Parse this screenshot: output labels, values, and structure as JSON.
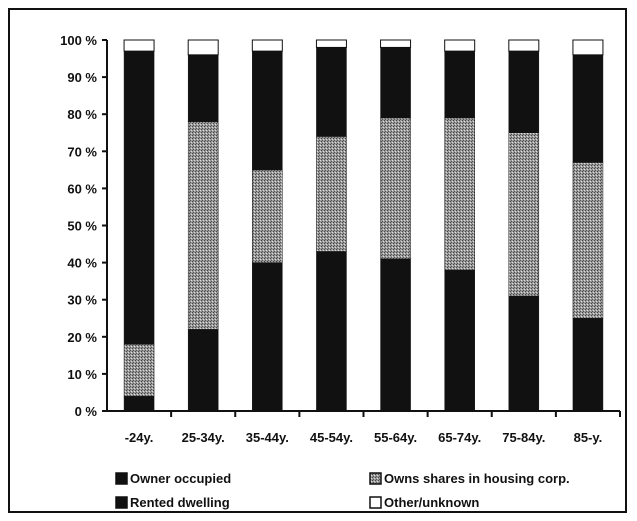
{
  "chart_data": {
    "type": "bar",
    "stacked": true,
    "title": "",
    "xlabel": "",
    "ylabel": "",
    "ylim": [
      0,
      100
    ],
    "y_ticks": [
      "0 %",
      "10 %",
      "20 %",
      "30 %",
      "40 %",
      "50 %",
      "60 %",
      "70 %",
      "80 %",
      "90 %",
      "100 %"
    ],
    "categories": [
      "-24y.",
      "25-34y.",
      "35-44y.",
      "45-54y.",
      "55-64y.",
      "65-74y.",
      "75-84y.",
      "85-y."
    ],
    "series": [
      {
        "name": "Owner occupied",
        "values": [
          4,
          22,
          40,
          43,
          41,
          38,
          31,
          25
        ]
      },
      {
        "name": "Owns shares in housing corp.",
        "values": [
          14,
          56,
          25,
          31,
          38,
          41,
          44,
          42
        ]
      },
      {
        "name": "Rented dwelling",
        "values": [
          79,
          18,
          32,
          24,
          19,
          18,
          22,
          29
        ]
      },
      {
        "name": "Other/unknown",
        "values": [
          3,
          4,
          3,
          2,
          2,
          3,
          3,
          4
        ]
      }
    ],
    "legend": {
      "placement": "bottom",
      "items": [
        "Owner occupied",
        "Owns shares in housing corp.",
        "Rented dwelling",
        "Other/unknown"
      ]
    },
    "grid": false
  },
  "colors": {
    "owner_occupied": "#111111",
    "owns_shares": "#8a8a8a",
    "rented": "#111111",
    "other": "#ffffff",
    "axis": "#111111"
  }
}
